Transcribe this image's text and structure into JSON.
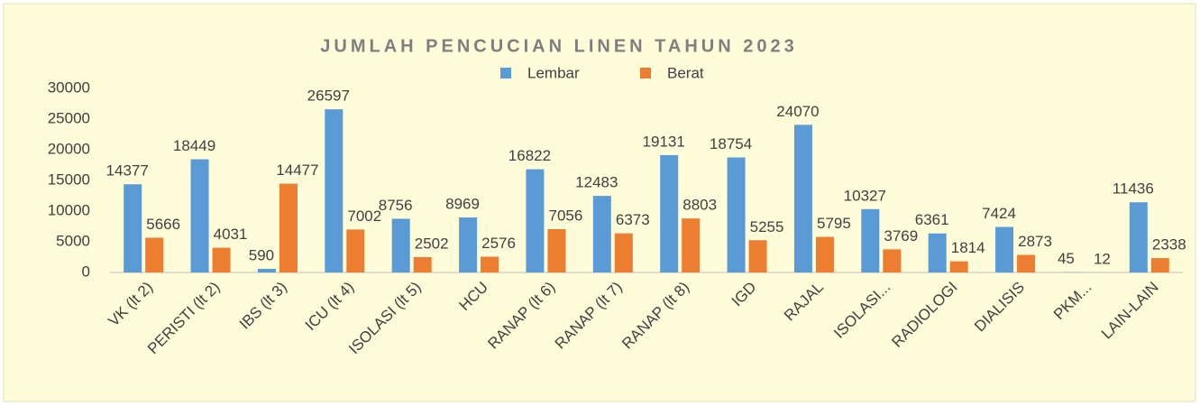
{
  "chart_data": {
    "type": "bar",
    "title": "JUMLAH PENCUCIAN LINEN TAHUN 2023",
    "categories": [
      "VK (lt 2)",
      "PERISTI (lt 2)",
      "IBS (lt 3)",
      "ICU (lt 4)",
      "ISOLASI (lt 5)",
      "HCU",
      "RANAP (lt 6)",
      "RANAP (lt 7)",
      "RANAP (lt 8)",
      "IGD",
      "RAJAL",
      "ISOLASI...",
      "RADIOLOGI",
      "DIALISIS",
      "PKM...",
      "LAIN-LAIN"
    ],
    "series": [
      {
        "name": "Lembar",
        "color": "#5b9bd5",
        "values": [
          14377,
          18449,
          590,
          26597,
          8756,
          8969,
          16822,
          12483,
          19131,
          18754,
          24070,
          10327,
          6361,
          7424,
          45,
          11436
        ]
      },
      {
        "name": "Berat",
        "color": "#ed7d31",
        "values": [
          5666,
          4031,
          14477,
          7002,
          2502,
          2576,
          7056,
          6373,
          8803,
          5255,
          5795,
          3769,
          1814,
          2873,
          12,
          2338
        ]
      }
    ],
    "ylim": [
      0,
      30000
    ],
    "yticks": [
      0,
      5000,
      10000,
      15000,
      20000,
      25000,
      30000
    ],
    "grid": false,
    "legend": "top"
  }
}
